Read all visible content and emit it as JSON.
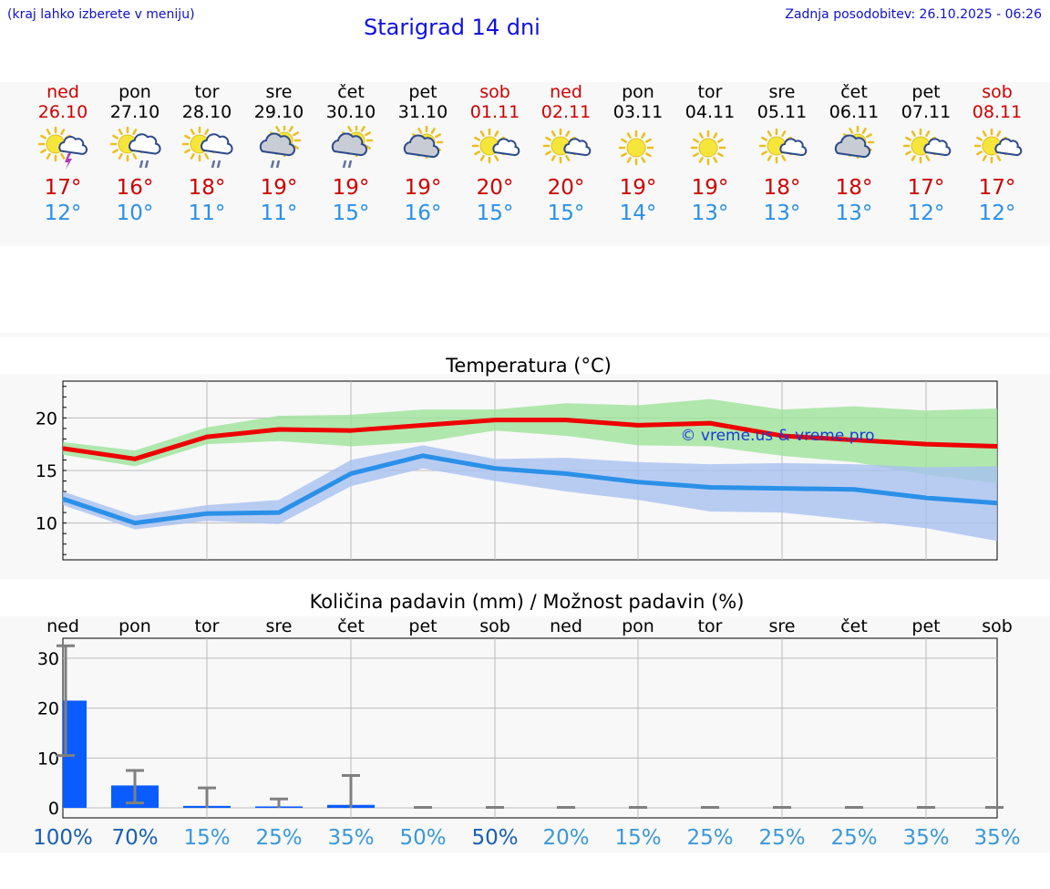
{
  "header": {
    "menu_note": "(kraj lahko izberete v meniju)",
    "title": "Starigrad 14 dni",
    "updated": "Zadnja posodobitev: 26.10.2025 - 06:26"
  },
  "days": [
    {
      "name": "ned",
      "date": "26.10",
      "weekend": true,
      "icon": "sun-cloud-thunder-icon",
      "tmax": "17°",
      "tmin": "12°",
      "precip_pct": "100%",
      "pct_dark": true
    },
    {
      "name": "pon",
      "date": "27.10",
      "weekend": false,
      "icon": "sun-cloud-rain-icon",
      "tmax": "16°",
      "tmin": "10°",
      "precip_pct": "70%",
      "pct_dark": true
    },
    {
      "name": "tor",
      "date": "28.10",
      "weekend": false,
      "icon": "sun-cloud-rain-icon",
      "tmax": "18°",
      "tmin": "11°",
      "precip_pct": "15%",
      "pct_dark": false
    },
    {
      "name": "sre",
      "date": "29.10",
      "weekend": false,
      "icon": "cloud-sun-rain-icon",
      "tmax": "19°",
      "tmin": "11°",
      "precip_pct": "25%",
      "pct_dark": false
    },
    {
      "name": "čet",
      "date": "30.10",
      "weekend": false,
      "icon": "cloud-sun-rain-icon",
      "tmax": "19°",
      "tmin": "15°",
      "precip_pct": "35%",
      "pct_dark": false
    },
    {
      "name": "pet",
      "date": "31.10",
      "weekend": false,
      "icon": "cloud-sun-icon",
      "tmax": "19°",
      "tmin": "16°",
      "precip_pct": "50%",
      "pct_dark": false
    },
    {
      "name": "sob",
      "date": "01.11",
      "weekend": true,
      "icon": "sun-small-cloud-icon",
      "tmax": "20°",
      "tmin": "15°",
      "precip_pct": "50%",
      "pct_dark": true
    },
    {
      "name": "ned",
      "date": "02.11",
      "weekend": true,
      "icon": "sun-small-cloud-icon",
      "tmax": "20°",
      "tmin": "15°",
      "precip_pct": "20%",
      "pct_dark": false
    },
    {
      "name": "pon",
      "date": "03.11",
      "weekend": false,
      "icon": "sun-icon",
      "tmax": "19°",
      "tmin": "14°",
      "precip_pct": "15%",
      "pct_dark": false
    },
    {
      "name": "tor",
      "date": "04.11",
      "weekend": false,
      "icon": "sun-icon",
      "tmax": "19°",
      "tmin": "13°",
      "precip_pct": "25%",
      "pct_dark": false
    },
    {
      "name": "sre",
      "date": "05.11",
      "weekend": false,
      "icon": "sun-small-cloud-icon",
      "tmax": "18°",
      "tmin": "13°",
      "precip_pct": "25%",
      "pct_dark": false
    },
    {
      "name": "čet",
      "date": "06.11",
      "weekend": false,
      "icon": "cloud-sun-icon",
      "tmax": "18°",
      "tmin": "13°",
      "precip_pct": "25%",
      "pct_dark": false
    },
    {
      "name": "pet",
      "date": "07.11",
      "weekend": false,
      "icon": "sun-small-cloud-icon",
      "tmax": "17°",
      "tmin": "12°",
      "precip_pct": "35%",
      "pct_dark": false
    },
    {
      "name": "sob",
      "date": "08.11",
      "weekend": true,
      "icon": "sun-small-cloud-icon",
      "tmax": "17°",
      "tmin": "12°",
      "precip_pct": "35%",
      "pct_dark": false
    }
  ],
  "colors": {
    "weekend_red": "#cc0000",
    "tmax_red": "#ee0000",
    "tmin_blue": "#2a90e8",
    "pct_dark": "#1a5fb0",
    "pct_light": "#3a98d8",
    "bar_blue": "#0a5cff",
    "band_green": "#9ee29a",
    "band_blue": "#a8c0f0"
  },
  "chart_data": [
    {
      "type": "line",
      "title": "Temperatura (°C)",
      "x": [
        1,
        2,
        3,
        4,
        5,
        6,
        7,
        8,
        9,
        10,
        11,
        12,
        13,
        14
      ],
      "ylim": [
        6.5,
        23.5
      ],
      "yticks": [
        10,
        15,
        20
      ],
      "series": [
        {
          "name": "max",
          "values": [
            17.1,
            16.1,
            18.2,
            18.9,
            18.8,
            19.3,
            19.8,
            19.8,
            19.3,
            19.5,
            18.3,
            17.9,
            17.5,
            17.3
          ],
          "band_low": [
            16.5,
            15.4,
            17.5,
            17.8,
            17.3,
            17.7,
            18.8,
            18.3,
            17.4,
            17.3,
            16.4,
            15.8,
            14.6,
            13.8
          ],
          "band_high": [
            17.7,
            16.9,
            19.1,
            20.2,
            20.3,
            20.8,
            20.8,
            21.4,
            21.2,
            21.8,
            20.8,
            21.1,
            20.7,
            20.9
          ]
        },
        {
          "name": "min",
          "values": [
            12.3,
            10.0,
            10.9,
            11.0,
            14.7,
            16.4,
            15.2,
            14.7,
            13.9,
            13.4,
            13.3,
            13.2,
            12.4,
            11.9
          ],
          "band_low": [
            11.7,
            9.4,
            10.2,
            9.9,
            13.5,
            15.2,
            14.0,
            13.0,
            12.2,
            11.1,
            11.0,
            10.3,
            9.5,
            8.3
          ],
          "band_high": [
            13.0,
            10.7,
            11.7,
            12.2,
            16.0,
            17.4,
            16.1,
            16.2,
            15.8,
            15.6,
            15.7,
            15.6,
            15.3,
            15.4
          ]
        }
      ],
      "watermark": "© vreme.us & vreme.pro"
    },
    {
      "type": "bar",
      "title": "Količina padavin (mm) / Možnost padavin (%)",
      "categories": [
        "ned",
        "pon",
        "tor",
        "sre",
        "čet",
        "pet",
        "sob",
        "ned",
        "pon",
        "tor",
        "sre",
        "čet",
        "pet",
        "sob"
      ],
      "ylim": [
        -2,
        34
      ],
      "yticks": [
        0,
        10,
        20,
        30
      ],
      "values": [
        21.5,
        4.5,
        0.4,
        0.3,
        0.6,
        0,
        0,
        0,
        0,
        0,
        0,
        0,
        0,
        0
      ],
      "err_low": [
        10.5,
        1.0,
        0,
        0,
        0,
        0,
        0,
        0,
        0,
        0,
        0,
        0,
        0,
        0
      ],
      "err_high": [
        32.5,
        7.5,
        4.0,
        1.8,
        6.5,
        0.1,
        0.1,
        0.1,
        0.1,
        0.1,
        0.1,
        0.1,
        0.1,
        0.1
      ]
    }
  ]
}
